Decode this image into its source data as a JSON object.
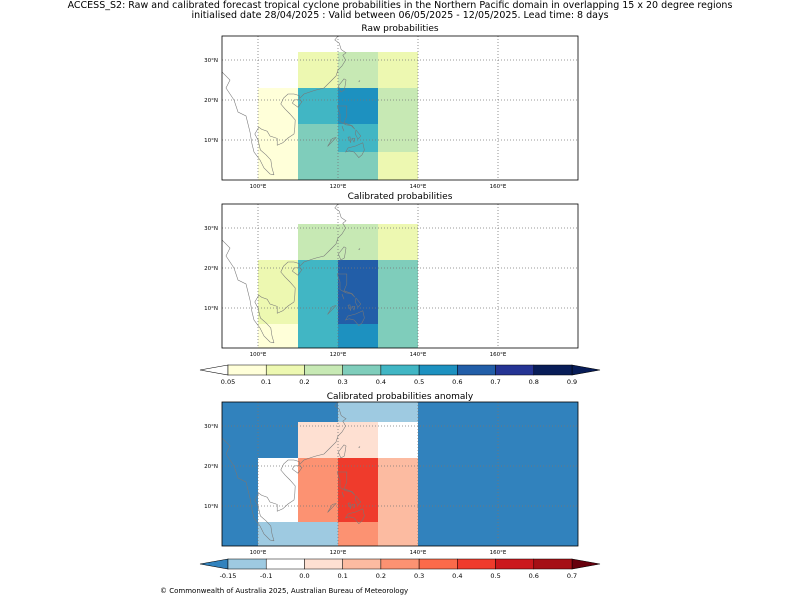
{
  "header": {
    "line1": "ACCESS_S2: Raw and calibrated forecast tropical cyclone probabilities in the Northern Pacific domain in overlapping 15 x 20 degree regions",
    "line2": "initialised date 28/04/2025 :  Valid between 06/05/2025 - 12/05/2025. Lead time: 8 days"
  },
  "panels": [
    {
      "title": "Raw probabilities",
      "cells": [
        {
          "lon0": 100,
          "lon1": 110,
          "lat0": 0,
          "lat1": 7,
          "value": 0.07
        },
        {
          "lon0": 100,
          "lon1": 110,
          "lat0": 7,
          "lat1": 23,
          "value": 0.07
        },
        {
          "lon0": 110,
          "lon1": 120,
          "lat0": 0,
          "lat1": 7,
          "value": 0.35
        },
        {
          "lon0": 110,
          "lon1": 120,
          "lat0": 7,
          "lat1": 14,
          "value": 0.35
        },
        {
          "lon0": 110,
          "lon1": 120,
          "lat0": 14,
          "lat1": 23,
          "value": 0.45
        },
        {
          "lon0": 110,
          "lon1": 120,
          "lat0": 23,
          "lat1": 32,
          "value": 0.15
        },
        {
          "lon0": 120,
          "lon1": 130,
          "lat0": 0,
          "lat1": 7,
          "value": 0.35
        },
        {
          "lon0": 120,
          "lon1": 130,
          "lat0": 7,
          "lat1": 14,
          "value": 0.45
        },
        {
          "lon0": 120,
          "lon1": 130,
          "lat0": 14,
          "lat1": 23,
          "value": 0.55
        },
        {
          "lon0": 120,
          "lon1": 130,
          "lat0": 23,
          "lat1": 32,
          "value": 0.25
        },
        {
          "lon0": 130,
          "lon1": 140,
          "lat0": 0,
          "lat1": 7,
          "value": 0.15
        },
        {
          "lon0": 130,
          "lon1": 140,
          "lat0": 7,
          "lat1": 23,
          "value": 0.25
        },
        {
          "lon0": 130,
          "lon1": 140,
          "lat0": 23,
          "lat1": 32,
          "value": 0.15
        }
      ]
    },
    {
      "title": "Calibrated probabilities",
      "cells": [
        {
          "lon0": 100,
          "lon1": 110,
          "lat0": 0,
          "lat1": 6,
          "value": 0.07
        },
        {
          "lon0": 100,
          "lon1": 110,
          "lat0": 6,
          "lat1": 22,
          "value": 0.15
        },
        {
          "lon0": 110,
          "lon1": 120,
          "lat0": 0,
          "lat1": 6,
          "value": 0.45
        },
        {
          "lon0": 110,
          "lon1": 120,
          "lat0": 6,
          "lat1": 22,
          "value": 0.45
        },
        {
          "lon0": 110,
          "lon1": 120,
          "lat0": 22,
          "lat1": 31,
          "value": 0.25
        },
        {
          "lon0": 120,
          "lon1": 130,
          "lat0": 0,
          "lat1": 6,
          "value": 0.55
        },
        {
          "lon0": 120,
          "lon1": 130,
          "lat0": 6,
          "lat1": 22,
          "value": 0.65
        },
        {
          "lon0": 120,
          "lon1": 130,
          "lat0": 22,
          "lat1": 31,
          "value": 0.25
        },
        {
          "lon0": 130,
          "lon1": 140,
          "lat0": 0,
          "lat1": 22,
          "value": 0.35
        },
        {
          "lon0": 130,
          "lon1": 140,
          "lat0": 22,
          "lat1": 31,
          "value": 0.15
        }
      ]
    },
    {
      "title": "Calibrated probabilities anomaly",
      "background_value": -0.2,
      "cells": [
        {
          "lon0": 100,
          "lon1": 110,
          "lat0": 0,
          "lat1": 6,
          "value": -0.12
        },
        {
          "lon0": 100,
          "lon1": 110,
          "lat0": 6,
          "lat1": 22,
          "value": -0.05
        },
        {
          "lon0": 110,
          "lon1": 120,
          "lat0": 0,
          "lat1": 6,
          "value": -0.12
        },
        {
          "lon0": 110,
          "lon1": 120,
          "lat0": 6,
          "lat1": 22,
          "value": 0.25
        },
        {
          "lon0": 110,
          "lon1": 120,
          "lat0": 22,
          "lat1": 31,
          "value": 0.05
        },
        {
          "lon0": 120,
          "lon1": 130,
          "lat0": 0,
          "lat1": 6,
          "value": 0.25
        },
        {
          "lon0": 120,
          "lon1": 130,
          "lat0": 6,
          "lat1": 22,
          "value": 0.45
        },
        {
          "lon0": 120,
          "lon1": 130,
          "lat0": 22,
          "lat1": 31,
          "value": 0.05
        },
        {
          "lon0": 120,
          "lon1": 130,
          "lat0": 31,
          "lat1": 36,
          "value": -0.12
        },
        {
          "lon0": 130,
          "lon1": 140,
          "lat0": 0,
          "lat1": 22,
          "value": 0.15
        },
        {
          "lon0": 130,
          "lon1": 140,
          "lat0": 22,
          "lat1": 31,
          "value": -0.05
        },
        {
          "lon0": 130,
          "lon1": 140,
          "lat0": 31,
          "lat1": 36,
          "value": -0.12
        }
      ]
    }
  ],
  "map_extent": {
    "lon": [
      91,
      180
    ],
    "lat": [
      0,
      36
    ]
  },
  "lon_ticks": [
    {
      "value": 100,
      "label": "100°E"
    },
    {
      "value": 120,
      "label": "120°E"
    },
    {
      "value": 140,
      "label": "140°E"
    },
    {
      "value": 160,
      "label": "160°E"
    }
  ],
  "lat_ticks": [
    {
      "value": 10,
      "label": "10°N"
    },
    {
      "value": 20,
      "label": "20°N"
    },
    {
      "value": 30,
      "label": "30°N"
    }
  ],
  "prob_colorbar": {
    "bounds": [
      0.05,
      0.1,
      0.2,
      0.3,
      0.4,
      0.5,
      0.6,
      0.7,
      0.8,
      0.9
    ],
    "labels": [
      "0.05",
      "0.1",
      "0.2",
      "0.3",
      "0.4",
      "0.5",
      "0.6",
      "0.7",
      "0.8",
      "0.9"
    ],
    "colors": [
      "#ffffd9",
      "#edf8b1",
      "#c7e9b4",
      "#7fcdbb",
      "#41b6c4",
      "#1d91c0",
      "#225ea8",
      "#253494",
      "#081d58"
    ],
    "under_color": "#ffffff",
    "over_color": "#081d58"
  },
  "anom_colorbar": {
    "bounds": [
      -0.15,
      -0.1,
      0.0,
      0.1,
      0.2,
      0.3,
      0.4,
      0.5,
      0.6,
      0.7
    ],
    "labels": [
      "-0.15",
      "-0.1",
      "0.0",
      "0.1",
      "0.2",
      "0.3",
      "0.4",
      "0.5",
      "0.6",
      "0.7"
    ],
    "colors": [
      "#9ecae1",
      "#ffffff",
      "#fee0d2",
      "#fcbba1",
      "#fc9272",
      "#fb6a4a",
      "#ef3b2c",
      "#cb181d",
      "#a50f15"
    ],
    "under_color": "#3182bd",
    "over_color": "#67000d"
  },
  "footer": "© Commonwealth of Australia 2025, Australian Bureau of Meteorology"
}
